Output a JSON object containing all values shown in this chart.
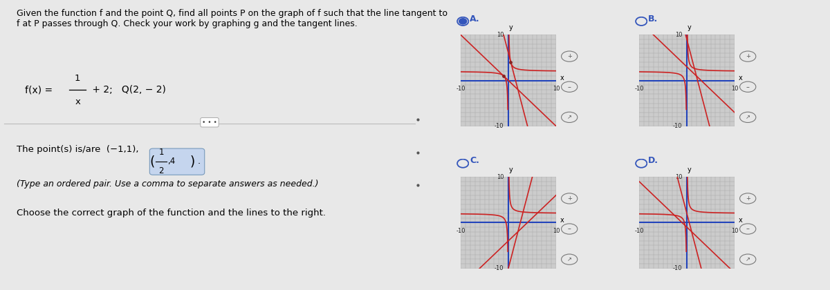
{
  "bg_color": "#e8e8e8",
  "page_bg": "#f4f4f4",
  "right_bg": "#e8e8e8",
  "title_text": "Given the function f and the point Q, find all points P on the graph of f such that the line tangent to\nf at P passes through Q. Check your work by graphing g and the tangent lines.",
  "func_rest": "+ 2;  Q(2, − 2)",
  "answer_note": "(Type an ordered pair. Use a comma to separate answers as needed.)",
  "choose_text": "Choose the correct graph of the function and the lines to the right.",
  "separator_text": "• • •",
  "options": [
    "A.",
    "B.",
    "C.",
    "D."
  ],
  "selected_option": 0,
  "option_label_color": "#3355bb",
  "graph_xlim": [
    -10,
    10
  ],
  "graph_ylim": [
    -10,
    10
  ],
  "graph_bg": "#cccccc",
  "grid_color": "#aaaaaa",
  "curve_color": "#cc2222",
  "tangent_color": "#cc2222",
  "axis_color": "#2244bb",
  "tick_label_color": "#222222",
  "point_color": "#882222",
  "curve_linewidth": 1.2,
  "tangent_linewidth": 1.2,
  "axis_linewidth": 1.5,
  "font_size_title": 9.0,
  "font_size_body": 9.5,
  "font_size_answer": 9.5,
  "font_size_graph_label": 6,
  "font_size_option": 9,
  "highlight_bg": "#c5d5ee",
  "highlight_border": "#7799bb"
}
